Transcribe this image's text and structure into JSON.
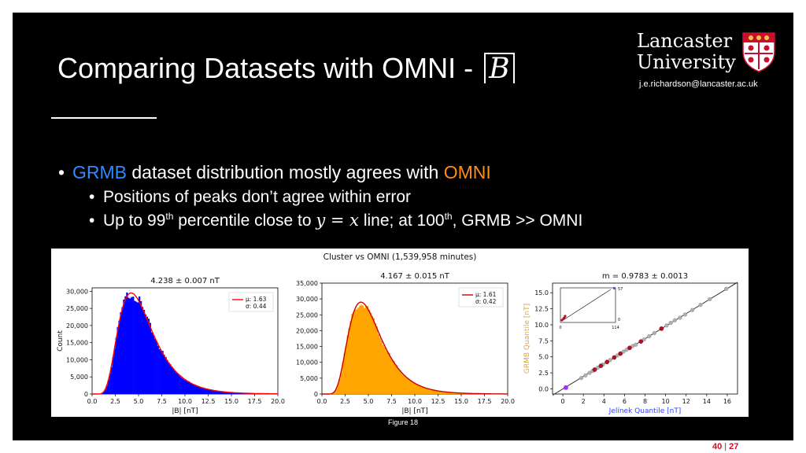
{
  "slide": {
    "title_prefix": "Comparing Datasets with OMNI - ",
    "title_math": "B",
    "university_line1": "Lancaster",
    "university_line2": "University",
    "email": "j.e.richardson@lancaster.ac.uk",
    "bullets": {
      "b1_pre": "GRMB",
      "b1_mid": " dataset distribution mostly agrees with ",
      "b1_post": "OMNI",
      "b2": "Positions of peaks don’t agree within error",
      "b3_a": "Up to 99",
      "b3_sup1": "th",
      "b3_b": " percentile close to ",
      "b3_math": "y = x",
      "b3_c": " line; at 100",
      "b3_sup2": "th",
      "b3_d": ", GRMB >> OMNI"
    },
    "caption": "Figure 18",
    "page_current": "40",
    "page_total": "27",
    "colors": {
      "grmb": "#2e8bff",
      "omni": "#ff8c1a",
      "page": "#c8102e"
    }
  },
  "figure": {
    "suptitle": "Cluster vs OMNI (1,539,958 minutes)"
  },
  "chart_data": [
    {
      "type": "bar",
      "title": "4.238 ± 0.007 nT",
      "xlabel": "|B| [nT]",
      "ylabel": "Count",
      "xlim": [
        0,
        20
      ],
      "ylim": [
        0,
        31000
      ],
      "xticks": [
        "0.0",
        "2.5",
        "5.0",
        "7.5",
        "10.0",
        "12.5",
        "15.0",
        "17.5",
        "20.0"
      ],
      "yticks": [
        "0",
        "5,000",
        "10,000",
        "15,000",
        "20,000",
        "25,000",
        "30,000"
      ],
      "ytick_values": [
        0,
        5000,
        10000,
        15000,
        20000,
        25000,
        30000
      ],
      "bar_color": "#0000ff",
      "fit_color": "#ff0000",
      "legend": [
        "μ: 1.63",
        "σ: 0.44"
      ],
      "mu": 1.63,
      "sigma": 0.44,
      "peak": 29500
    },
    {
      "type": "bar",
      "title": "4.167 ± 0.015 nT",
      "xlabel": "|B| [nT]",
      "ylabel": "",
      "xlim": [
        0,
        20
      ],
      "ylim": [
        0,
        35000
      ],
      "xticks": [
        "0.0",
        "2.5",
        "5.0",
        "7.5",
        "10.0",
        "12.5",
        "15.0",
        "17.5",
        "20.0"
      ],
      "yticks": [
        "0",
        "5,000",
        "10,000",
        "15,000",
        "20,000",
        "25,000",
        "30,000",
        "35,000"
      ],
      "ytick_values": [
        0,
        5000,
        10000,
        15000,
        20000,
        25000,
        30000,
        35000
      ],
      "bar_color": "#ffa500",
      "fit_color": "#cc0000",
      "legend": [
        "μ: 1.61",
        "σ: 0.42"
      ],
      "mu": 1.61,
      "sigma": 0.42,
      "peak": 29000
    },
    {
      "type": "scatter",
      "title": "m = 0.9783 ± 0.0013",
      "xlabel": "Jelínek Quantile [nT]",
      "ylabel": "GRMB Quantile [nT]",
      "xlim": [
        -1,
        17
      ],
      "ylim": [
        -0.8,
        16.5
      ],
      "xticks": [
        "0",
        "2",
        "4",
        "6",
        "8",
        "10",
        "12",
        "14",
        "16"
      ],
      "xtick_values": [
        0,
        2,
        4,
        6,
        8,
        10,
        12,
        14,
        16
      ],
      "yticks": [
        "0.0",
        "2.5",
        "5.0",
        "7.5",
        "10.0",
        "12.5",
        "15.0"
      ],
      "ytick_values": [
        0,
        2.5,
        5,
        7.5,
        10,
        12.5,
        15
      ],
      "xlabel_color": "#3344ff",
      "ylabel_color": "#e8a33a",
      "slope": 0.9783,
      "red_points": [
        [
          0.3,
          0.2
        ],
        [
          3.1,
          3.0
        ],
        [
          3.7,
          3.6
        ],
        [
          4.3,
          4.2
        ],
        [
          5.0,
          4.9
        ],
        [
          5.6,
          5.5
        ],
        [
          6.5,
          6.4
        ],
        [
          7.6,
          7.4
        ],
        [
          9.6,
          9.4
        ]
      ],
      "gray_points": [
        [
          1.8,
          1.7
        ],
        [
          2.2,
          2.1
        ],
        [
          2.6,
          2.5
        ],
        [
          2.9,
          2.8
        ],
        [
          3.4,
          3.3
        ],
        [
          3.9,
          3.8
        ],
        [
          4.6,
          4.5
        ],
        [
          5.3,
          5.2
        ],
        [
          5.9,
          5.8
        ],
        [
          6.2,
          6.1
        ],
        [
          6.8,
          6.7
        ],
        [
          7.1,
          6.9
        ],
        [
          7.9,
          7.7
        ],
        [
          8.4,
          8.2
        ],
        [
          8.9,
          8.7
        ],
        [
          10.1,
          9.9
        ],
        [
          10.5,
          10.3
        ],
        [
          10.9,
          10.7
        ],
        [
          11.4,
          11.1
        ],
        [
          11.9,
          11.6
        ],
        [
          12.6,
          12.3
        ],
        [
          13.4,
          13.1
        ],
        [
          14.3,
          14.0
        ],
        [
          15.9,
          15.6
        ]
      ],
      "inset": {
        "xticks": [
          "0",
          "114"
        ],
        "yticks": [
          "0",
          "57"
        ]
      }
    }
  ]
}
